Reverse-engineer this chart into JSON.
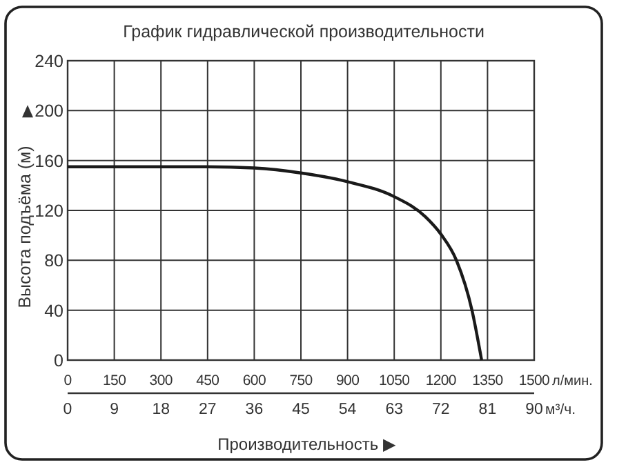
{
  "chart_data": {
    "type": "line",
    "title": "График гидравлической производительности",
    "xlabel": "Производительность ▶",
    "ylabel": "Высота подъёма (м)",
    "annotations": [
      "л/мин.",
      "м³/ч."
    ],
    "x": [
      0,
      150,
      300,
      450,
      600,
      750,
      900,
      1050,
      1150,
      1200,
      1250,
      1300,
      1331
    ],
    "series": [
      {
        "color": "#1a1a1a",
        "values": [
          155,
          155,
          155,
          155,
          154,
          150,
          143,
          131,
          115,
          101,
          80,
          40,
          0
        ]
      }
    ],
    "xlim": [
      0,
      1500
    ],
    "xticks": [
      0,
      150,
      300,
      450,
      600,
      750,
      900,
      1050,
      1200,
      1350,
      1500
    ],
    "x2lim": [
      0,
      90
    ],
    "x2ticks": [
      0,
      9,
      18,
      27,
      36,
      45,
      54,
      63,
      72,
      81,
      90
    ],
    "ylim": [
      0,
      240
    ],
    "yticks": [
      0,
      40,
      80,
      120,
      160,
      200,
      240
    ],
    "grid": true,
    "marker": "none",
    "line_style": "solid"
  }
}
